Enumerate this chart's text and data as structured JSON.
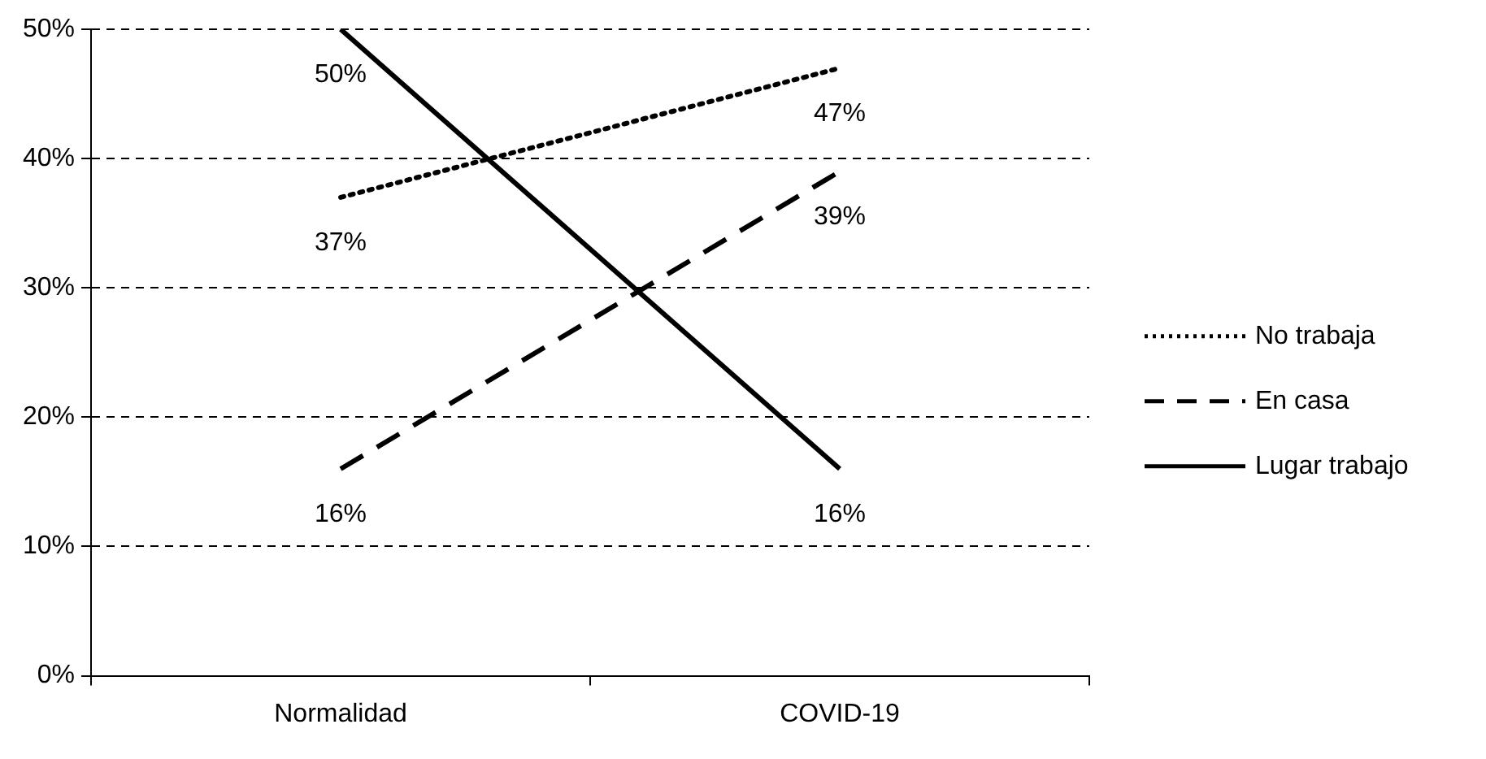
{
  "chart_data": {
    "type": "line",
    "categories": [
      "Normalidad",
      "COVID-19"
    ],
    "series": [
      {
        "name": "No trabaja",
        "color": "#000000",
        "line_style": "dotted",
        "values": [
          37,
          47
        ],
        "value_labels": [
          "37%",
          "47%"
        ]
      },
      {
        "name": "En casa",
        "color": "#000000",
        "line_style": "dashed",
        "values": [
          16,
          39
        ],
        "value_labels": [
          "16%",
          "39%"
        ]
      },
      {
        "name": "Lugar trabajo",
        "color": "#000000",
        "line_style": "solid",
        "values": [
          50,
          16
        ],
        "value_labels": [
          "50%",
          "16%"
        ]
      }
    ],
    "ylim": [
      0,
      50
    ],
    "yticks": [
      {
        "value": 0,
        "label": "0%"
      },
      {
        "value": 10,
        "label": "10%"
      },
      {
        "value": 20,
        "label": "20%"
      },
      {
        "value": 30,
        "label": "30%"
      },
      {
        "value": 40,
        "label": "40%"
      },
      {
        "value": 50,
        "label": "50%"
      }
    ],
    "grid": "y",
    "legend": "right",
    "marker": "none"
  }
}
